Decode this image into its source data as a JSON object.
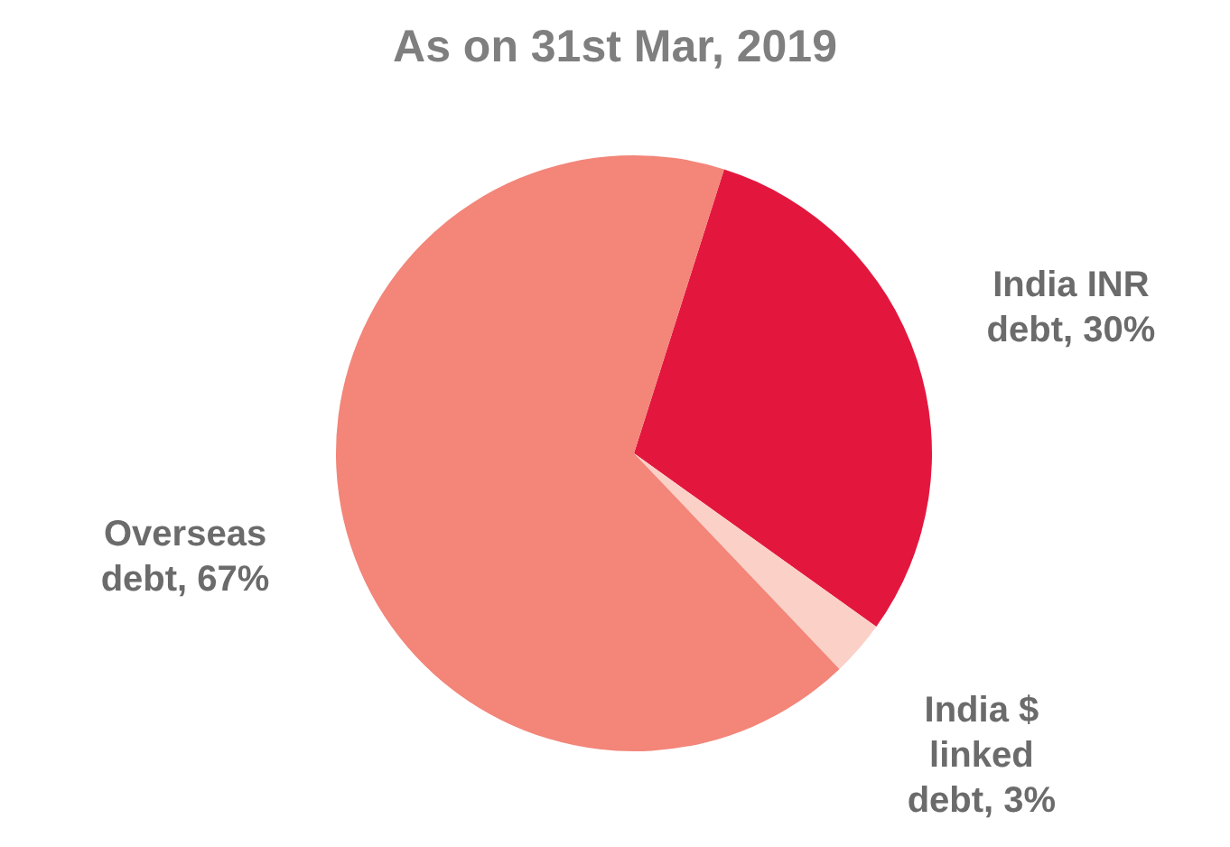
{
  "chart_data": {
    "type": "pie",
    "title": "As on 31st Mar, 2019",
    "categories": [
      "India INR debt",
      "India $ linked debt",
      "Overseas debt"
    ],
    "values": [
      30,
      3,
      67
    ],
    "value_labels": [
      "30%",
      "3%",
      "67%"
    ],
    "colors": [
      "#e3173e",
      "#fbd0c7",
      "#f38579"
    ]
  }
}
